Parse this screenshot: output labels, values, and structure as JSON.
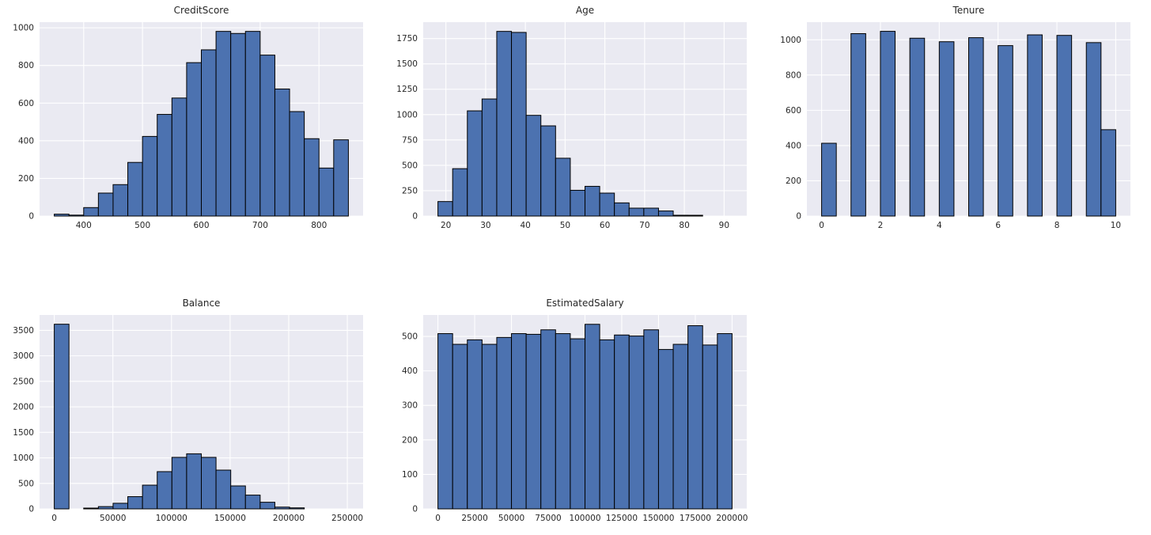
{
  "figure": {
    "background": "#ffffff",
    "axes_background": "#eaeaf2",
    "grid_color": "#ffffff",
    "bar_fill": "#4c72b0",
    "bar_edge": "#000000",
    "text_color": "#262626"
  },
  "chart_data": [
    {
      "type": "bar",
      "title": "CreditScore",
      "bin_start": 350,
      "bin_width": 25,
      "values": [
        10,
        5,
        45,
        122,
        167,
        285,
        423,
        540,
        627,
        815,
        883,
        981,
        970,
        981,
        855,
        675,
        555,
        411,
        255,
        405
      ],
      "xlim": [
        325,
        875
      ],
      "ylim": [
        0,
        1030
      ],
      "xticks": [
        400,
        500,
        600,
        700,
        800
      ],
      "yticks": [
        0,
        200,
        400,
        600,
        800,
        1000
      ],
      "grid": "on",
      "legend": "none"
    },
    {
      "type": "bar",
      "title": "Age",
      "bin_start": 18,
      "bin_width": 3.7,
      "values": [
        143,
        467,
        1037,
        1154,
        1820,
        1810,
        993,
        889,
        570,
        254,
        293,
        226,
        130,
        78,
        78,
        50,
        8,
        5,
        1,
        2
      ],
      "xlim": [
        14.3,
        95.7
      ],
      "ylim": [
        0,
        1911
      ],
      "xticks": [
        20,
        30,
        40,
        50,
        60,
        70,
        80,
        90
      ],
      "yticks": [
        0,
        250,
        500,
        750,
        1000,
        1250,
        1500,
        1750
      ],
      "grid": "on",
      "legend": "none"
    },
    {
      "type": "bar",
      "title": "Tenure",
      "bin_start": 0,
      "bin_width": 0.5,
      "values": [
        413,
        0,
        1035,
        0,
        1048,
        0,
        1009,
        0,
        989,
        0,
        1012,
        0,
        967,
        0,
        1028,
        0,
        1025,
        0,
        984,
        490
      ],
      "xlim": [
        -0.5,
        10.5
      ],
      "ylim": [
        0,
        1100
      ],
      "xticks": [
        0,
        2,
        4,
        6,
        8,
        10
      ],
      "yticks": [
        0,
        200,
        400,
        600,
        800,
        1000
      ],
      "grid": "on",
      "legend": "none"
    },
    {
      "type": "bar",
      "title": "Balance",
      "bin_start": 0,
      "bin_width": 12544.9,
      "values": [
        3620,
        0,
        12,
        45,
        110,
        240,
        465,
        730,
        1010,
        1080,
        1010,
        760,
        450,
        270,
        130,
        35,
        20,
        0,
        0,
        1
      ],
      "xlim": [
        -12545,
        263443
      ],
      "ylim": [
        0,
        3801
      ],
      "xticks": [
        0,
        50000,
        100000,
        150000,
        200000,
        250000
      ],
      "yticks": [
        0,
        500,
        1000,
        1500,
        2000,
        2500,
        3000,
        3500
      ],
      "grid": "on",
      "legend": "none"
    },
    {
      "type": "bar",
      "title": "EstimatedSalary",
      "bin_start": 11.58,
      "bin_width": 9999.05,
      "values": [
        508,
        477,
        490,
        477,
        497,
        508,
        506,
        519,
        508,
        493,
        535,
        490,
        504,
        501,
        519,
        462,
        477,
        531,
        475,
        508
      ],
      "xlim": [
        -9987,
        209991
      ],
      "ylim": [
        0,
        562
      ],
      "xticks": [
        0,
        25000,
        50000,
        75000,
        100000,
        125000,
        150000,
        175000,
        200000
      ],
      "yticks": [
        0,
        100,
        200,
        300,
        400,
        500
      ],
      "grid": "on",
      "legend": "none"
    }
  ]
}
